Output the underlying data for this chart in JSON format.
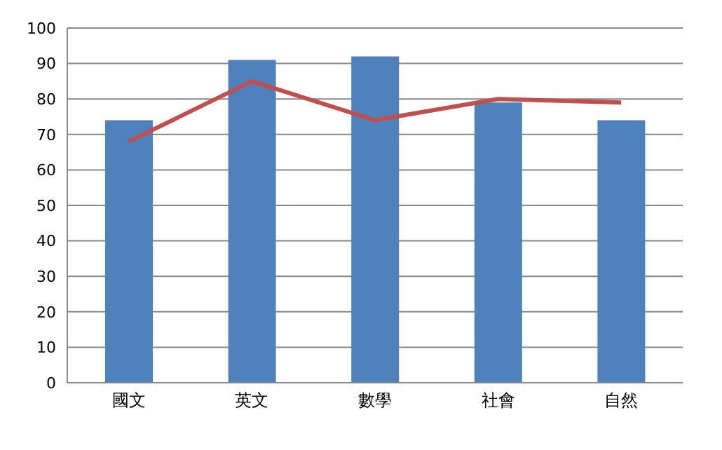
{
  "chart_data": {
    "type": "bar",
    "categories": [
      "國文",
      "英文",
      "數學",
      "社會",
      "自然"
    ],
    "series": [
      {
        "color": "#4f81bd",
        "values": [
          74,
          91,
          92,
          79,
          74
        ]
      },
      {
        "type": "line",
        "color": "#c0504d",
        "values": [
          68,
          85,
          74,
          80,
          79
        ]
      }
    ],
    "ylim": [
      0,
      100
    ],
    "yticks": [
      0,
      10,
      20,
      30,
      40,
      50,
      60,
      70,
      80,
      90,
      100
    ],
    "grid": "y",
    "marker": "none"
  }
}
